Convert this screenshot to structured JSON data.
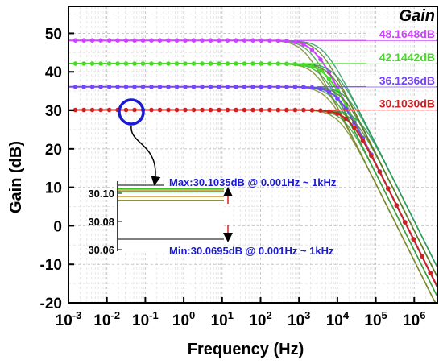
{
  "chart_data": {
    "type": "line",
    "title": "Gain",
    "xlabel": "Frequency (Hz)",
    "ylabel": "Gain (dB)",
    "xscale": "log",
    "xlim": [
      0.001,
      4000000
    ],
    "ylim": [
      -20,
      57
    ],
    "grid": true,
    "x_ticks": [
      {
        "base": "10",
        "exp": "-3"
      },
      {
        "base": "10",
        "exp": "-2"
      },
      {
        "base": "10",
        "exp": "-1"
      },
      {
        "base": "10",
        "exp": "0"
      },
      {
        "base": "10",
        "exp": "1"
      },
      {
        "base": "10",
        "exp": "2"
      },
      {
        "base": "10",
        "exp": "3"
      },
      {
        "base": "10",
        "exp": "4"
      },
      {
        "base": "10",
        "exp": "5"
      },
      {
        "base": "10",
        "exp": "6"
      }
    ],
    "y_ticks": [
      "-20",
      "-10",
      "0",
      "10",
      "20",
      "30",
      "40",
      "50"
    ],
    "series": [
      {
        "color": "#cc44ff",
        "dc_gain": 48.1648,
        "corner_hz": 2500,
        "label": "48.1648dB"
      },
      {
        "color": "#44dd22",
        "dc_gain": 42.1442,
        "corner_hz": 5000,
        "label": "42.1442dB"
      },
      {
        "color": "#7744ff",
        "dc_gain": 36.1236,
        "corner_hz": 10000,
        "label": "36.1236dB"
      },
      {
        "color": "#cc2222",
        "dc_gain": 30.103,
        "corner_hz": 20000,
        "label": "30.1030dB"
      }
    ],
    "inset": {
      "y_ticks": [
        "30.10",
        "30.08",
        "30.06"
      ],
      "max_annotation": "Max:30.1035dB @ 0.001Hz ~ 1kHz",
      "min_annotation": "Min:30.0695dB @ 0.001Hz ~ 1kHz"
    }
  }
}
